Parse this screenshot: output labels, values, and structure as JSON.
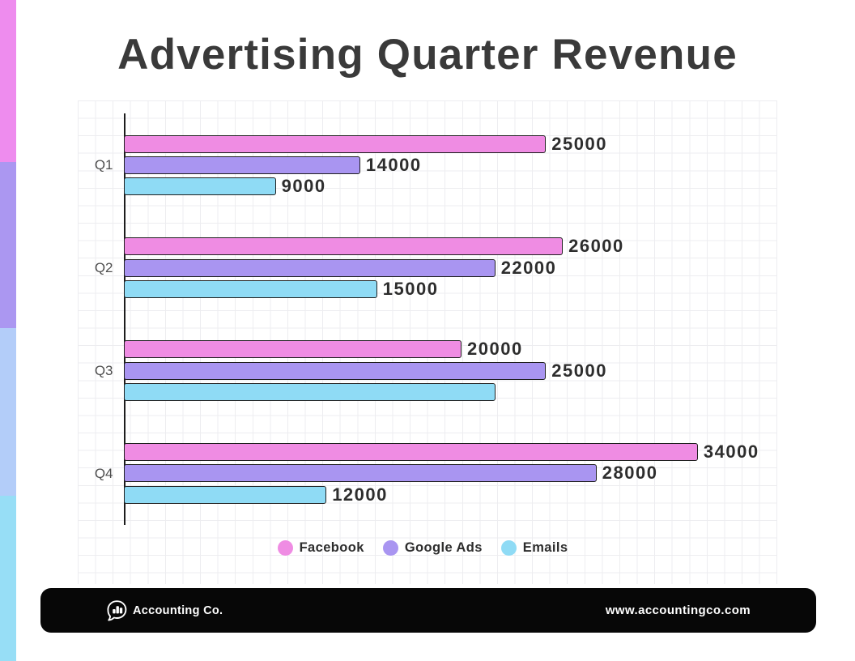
{
  "title": "Advertising Quarter Revenue",
  "accent_strip": {
    "segments": [
      {
        "name": "pink",
        "color": "#ee8cee",
        "from": 0,
        "to": 200
      },
      {
        "name": "purple",
        "color": "#ab97f1",
        "from": 200,
        "to": 405
      },
      {
        "name": "periwinkle",
        "color": "#b3cdf9",
        "from": 405,
        "to": 612
      },
      {
        "name": "sky",
        "color": "#97def6",
        "from": 612,
        "to": 816
      }
    ]
  },
  "chart_data": {
    "type": "bar",
    "orientation": "horizontal",
    "title": "Advertising Quarter Revenue",
    "categories": [
      "Q1",
      "Q2",
      "Q3",
      "Q4"
    ],
    "series": [
      {
        "name": "Facebook",
        "color": "#ef8ce3",
        "values": [
          25000,
          26000,
          20000,
          34000
        ],
        "value_labels": [
          "25000",
          "26000",
          "20000",
          "34000"
        ]
      },
      {
        "name": "Google Ads",
        "color": "#a995f1",
        "values": [
          14000,
          22000,
          25000,
          28000
        ],
        "value_labels": [
          "14000",
          "22000",
          "25000",
          "28000"
        ]
      },
      {
        "name": "Emails",
        "color": "#8fdbf5",
        "values": [
          9000,
          15000,
          22000,
          12000
        ],
        "value_labels": [
          "9000",
          "15000",
          "",
          "12000"
        ]
      }
    ],
    "xlabel": "",
    "ylabel": "",
    "value_axis_visible": false,
    "grid": true,
    "legend_position": "bottom",
    "legend": [
      "Facebook",
      "Google Ads",
      "Emails"
    ]
  },
  "footer": {
    "brand": "Accounting Co.",
    "website": "www.accountingco.com",
    "logo": "speech-bubble-bar-chart-icon"
  }
}
